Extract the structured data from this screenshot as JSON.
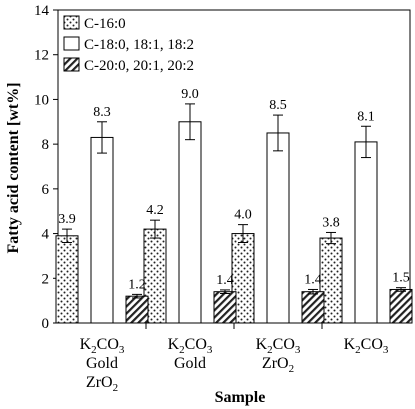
{
  "chart_data": {
    "type": "bar",
    "xlabel": "Sample",
    "ylabel": "Fatty acid content [wt%]",
    "ylim": [
      0,
      14
    ],
    "yticks": [
      0,
      2,
      4,
      6,
      8,
      10,
      12,
      14
    ],
    "grid": false,
    "legend_position": "top-left",
    "categories": [
      {
        "lines": [
          {
            "base": "K",
            "sub": "2",
            "rest": "CO",
            "sub2": "3"
          },
          {
            "base": "Gold"
          },
          {
            "base": "ZrO",
            "sub": "2"
          }
        ]
      },
      {
        "lines": [
          {
            "base": "K",
            "sub": "2",
            "rest": "CO",
            "sub2": "3"
          },
          {
            "base": "Gold"
          }
        ]
      },
      {
        "lines": [
          {
            "base": "K",
            "sub": "2",
            "rest": "CO",
            "sub2": "3"
          },
          {
            "base": "ZrO",
            "sub": "2"
          }
        ]
      },
      {
        "lines": [
          {
            "base": "K",
            "sub": "2",
            "rest": "CO",
            "sub2": "3"
          }
        ]
      }
    ],
    "series": [
      {
        "name": "C-16:0",
        "pattern": "dots",
        "values": [
          3.9,
          4.2,
          4.0,
          3.8
        ],
        "labels": [
          "3.9",
          "4.2",
          "4.0",
          "3.8"
        ],
        "errors": [
          0.3,
          0.4,
          0.4,
          0.25
        ]
      },
      {
        "name": "C-18:0, 18:1, 18:2",
        "pattern": "white",
        "values": [
          8.3,
          9.0,
          8.5,
          8.1
        ],
        "labels": [
          "8.3",
          "9.0",
          "8.5",
          "8.1"
        ],
        "errors": [
          0.7,
          0.8,
          0.8,
          0.7
        ]
      },
      {
        "name": "C-20:0, 20:1, 20:2",
        "pattern": "hatch",
        "values": [
          1.2,
          1.4,
          1.4,
          1.5
        ],
        "labels": [
          "1.2",
          "1.4",
          "1.4",
          "1.5"
        ],
        "errors": [
          0.08,
          0.08,
          0.1,
          0.08
        ]
      }
    ]
  }
}
